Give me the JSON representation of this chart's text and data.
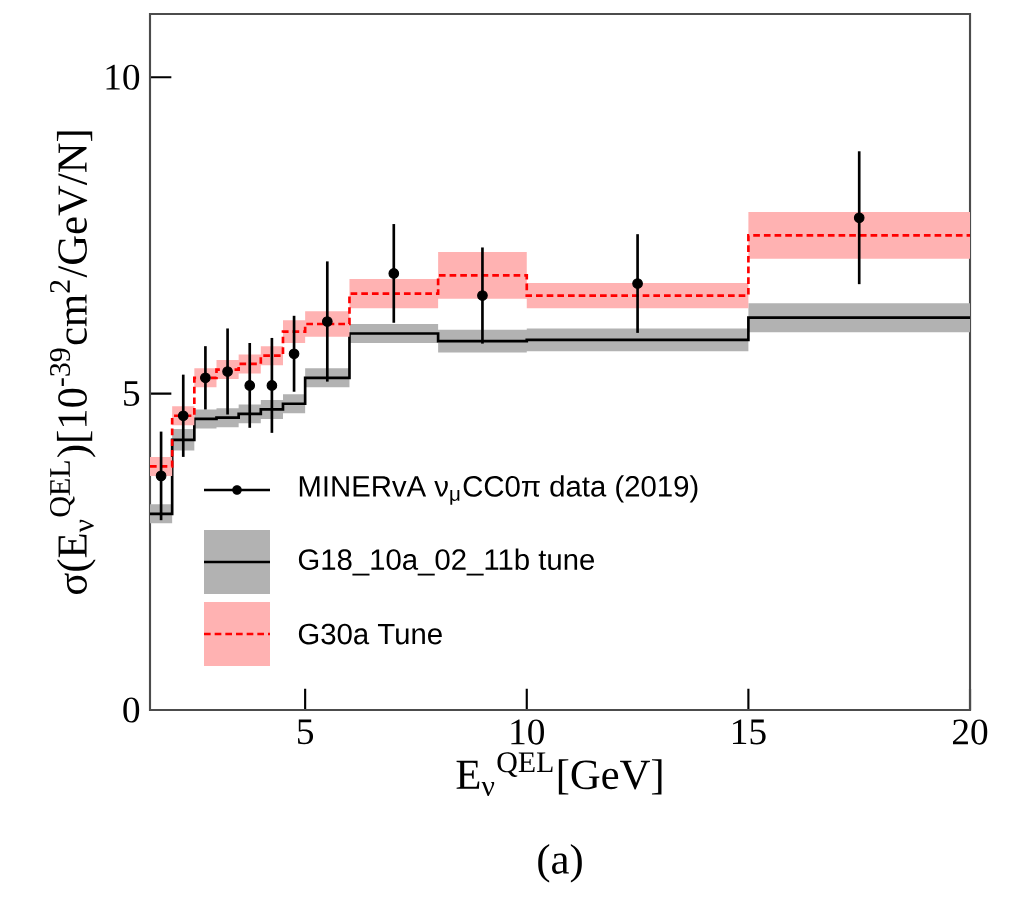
{
  "chart_data": {
    "type": "step",
    "xlabel": "E$_{ν}$$^{QEL}$[GeV]",
    "ylabel": "σ(E$_{ν}$$^{QEL}$)[10$^{-39}$cm$^{2}$/GeV/N]",
    "annotations": [
      "(a)"
    ],
    "xlim": [
      1.5,
      20
    ],
    "ylim": [
      0,
      11
    ],
    "xticks": [
      5,
      10,
      15,
      20
    ],
    "yticks": [
      0,
      5,
      10
    ],
    "grid": false,
    "legend": "left",
    "series": [
      {
        "name": "MINERvA ν$_{μ}$CC0π data (2019)",
        "type": "scatter",
        "color": "#000000",
        "marker": "circle",
        "x": [
          1.75,
          2.25,
          2.75,
          3.25,
          3.75,
          4.25,
          4.75,
          5.5,
          7,
          9,
          12.5,
          17.5
        ],
        "values": [
          3.7,
          4.65,
          5.25,
          5.35,
          5.13,
          5.13,
          5.63,
          6.14,
          6.9,
          6.55,
          6.74,
          7.78
        ],
        "errors": [
          0.7,
          0.65,
          0.5,
          0.68,
          0.67,
          0.75,
          0.6,
          0.95,
          0.78,
          0.76,
          0.78,
          1.05
        ]
      },
      {
        "name": "G18_10a_02_11b tune",
        "type": "step",
        "color": "#000000",
        "line_style": "solid",
        "x": [
          1.5,
          2,
          2.5,
          3,
          3.5,
          4,
          4.5,
          5,
          6,
          8,
          10,
          15,
          20
        ],
        "values": [
          3.1,
          4.27,
          4.6,
          4.62,
          4.68,
          4.75,
          4.84,
          5.25,
          5.95,
          5.83,
          5.85,
          6.2,
          6.2
        ],
        "lower": [
          2.95,
          4.1,
          4.45,
          4.47,
          4.53,
          4.6,
          4.69,
          5.1,
          5.8,
          5.65,
          5.67,
          5.97,
          5.97
        ],
        "upper": [
          3.25,
          4.44,
          4.75,
          4.77,
          4.83,
          4.9,
          4.99,
          5.4,
          6.1,
          6.01,
          6.03,
          6.43,
          6.43
        ]
      },
      {
        "name": "G30a Tune",
        "type": "step",
        "color": "#ff0000",
        "line_style": "dashed",
        "x": [
          1.5,
          2,
          2.5,
          3,
          3.5,
          4,
          4.5,
          5,
          6,
          8,
          10,
          15,
          20
        ],
        "values": [
          3.85,
          4.65,
          5.25,
          5.38,
          5.47,
          5.6,
          5.98,
          6.1,
          6.58,
          6.87,
          6.55,
          7.5,
          7.5
        ],
        "lower": [
          3.7,
          4.5,
          5.1,
          5.23,
          5.32,
          5.45,
          5.8,
          5.9,
          6.35,
          6.5,
          6.35,
          7.13,
          7.13
        ],
        "upper": [
          4.0,
          4.8,
          5.4,
          5.53,
          5.62,
          5.75,
          6.16,
          6.3,
          6.81,
          7.24,
          6.75,
          7.87,
          7.87
        ]
      }
    ]
  }
}
